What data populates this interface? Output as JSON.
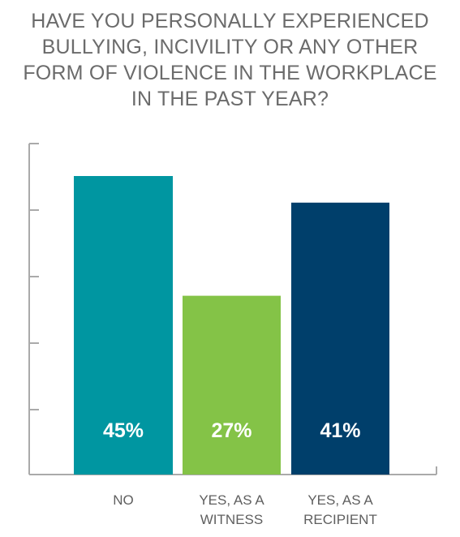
{
  "chart_data": {
    "type": "bar",
    "title_lines": [
      "HAVE YOU PERSONALLY EXPERIENCED",
      "BULLYING, INCIVILITY OR ANY OTHER",
      "FORM OF VIOLENCE IN THE WORKPLACE",
      "IN THE PAST YEAR?"
    ],
    "categories": [
      [
        "NO"
      ],
      [
        "YES, AS A",
        "WITNESS"
      ],
      [
        "YES, AS A",
        "RECIPIENT"
      ]
    ],
    "values": [
      45,
      27,
      41
    ],
    "value_labels": [
      "45%",
      "27%",
      "41%"
    ],
    "ylim": [
      0,
      50
    ],
    "yticks": [
      0,
      10,
      20,
      30,
      40,
      50
    ],
    "ytick_labels_shown": false,
    "grid": false,
    "legend": "none",
    "colors": [
      "#0096a1",
      "#84c347",
      "#003f6b"
    ],
    "axis_color": "#aaaaaa",
    "label_color": "#5f5f5f",
    "value_label_color": "#ffffff"
  }
}
